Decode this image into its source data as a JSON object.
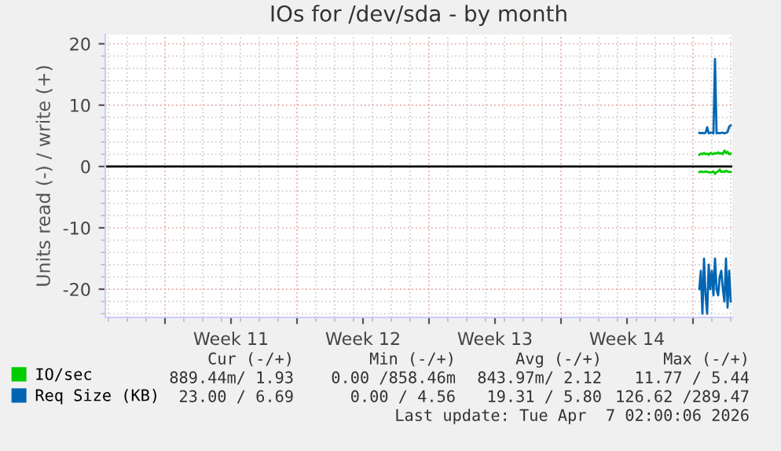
{
  "chart_data": {
    "type": "line",
    "title": "IOs for /dev/sda - by month",
    "ylabel": "Units read (-) / write (+)",
    "xlim": [
      "2026-03-05T20:00",
      "2026-04-08T02:00"
    ],
    "xticks": [
      {
        "value": "2026-03-09",
        "label": null
      },
      {
        "value": "2026-03-12T12:00",
        "label": "Week 11"
      },
      {
        "value": "2026-03-16",
        "label": null
      },
      {
        "value": "2026-03-19T12:00",
        "label": "Week 12"
      },
      {
        "value": "2026-03-23",
        "label": null
      },
      {
        "value": "2026-03-26T12:00",
        "label": "Week 13"
      },
      {
        "value": "2026-03-30",
        "label": null
      },
      {
        "value": "2026-04-02T12:00",
        "label": "Week 14"
      },
      {
        "value": "2026-04-06",
        "label": null
      }
    ],
    "ylim": [
      -24.6,
      21.5
    ],
    "yticks": [
      -20,
      -10,
      0,
      10,
      20
    ],
    "grid": true,
    "legend": "bottom",
    "x": [
      "2026-04-06T08:00",
      "2026-04-06T10:00",
      "2026-04-06T12:00",
      "2026-04-06T14:00",
      "2026-04-06T16:00",
      "2026-04-06T18:00",
      "2026-04-06T20:00",
      "2026-04-06T22:00",
      "2026-04-07T00:00",
      "2026-04-07T02:00",
      "2026-04-07T04:00",
      "2026-04-07T06:00",
      "2026-04-07T08:00",
      "2026-04-07T10:00",
      "2026-04-07T12:00",
      "2026-04-07T14:00",
      "2026-04-07T16:00",
      "2026-04-07T18:00",
      "2026-04-07T20:00",
      "2026-04-07T22:00",
      "2026-04-08T00:00"
    ],
    "series": [
      {
        "name": "IO/sec",
        "color": "#00cc00",
        "values": [
          1.9,
          2.1,
          2.0,
          2.2,
          2.0,
          2.1,
          1.9,
          2.2,
          2.1,
          2.0,
          2.2,
          2.1,
          2.3,
          2.1,
          2.2,
          2.0,
          2.6,
          2.2,
          2.4,
          2.0,
          2.1
        ]
      },
      {
        "color": "#00cc00",
        "values": [
          -0.9,
          -0.8,
          -0.9,
          -0.9,
          -0.8,
          -0.9,
          -0.9,
          -1.0,
          -0.9,
          -0.8,
          -1.2,
          -0.9,
          -0.8,
          -0.5,
          -0.9,
          -0.8,
          -0.9,
          -0.7,
          -0.8,
          -0.9,
          -0.9
        ]
      },
      {
        "name": "Req Size (KB)",
        "color": "#0066b3",
        "values": [
          5.5,
          5.4,
          5.5,
          5.4,
          5.5,
          6.4,
          5.4,
          5.5,
          5.5,
          5.4,
          17.5,
          5.4,
          5.5,
          5.4,
          5.5,
          5.5,
          5.4,
          5.5,
          5.6,
          6.5,
          6.7
        ]
      },
      {
        "color": "#0066b3",
        "values": [
          -20,
          -17,
          -24,
          -15,
          -21,
          -24,
          -16,
          -20,
          -17,
          -21,
          -15,
          -20,
          -21,
          -18,
          -17,
          -20,
          -22,
          -15,
          -23,
          -17,
          -22
        ]
      }
    ],
    "ref_lines": [
      {
        "axis": "y",
        "value": 0,
        "color": "#000000"
      }
    ],
    "annotations": [
      "Cur (-/+)",
      "Min (-/+)",
      "Avg (-/+)",
      "Max (-/+)",
      "889.44m/ 1.93",
      "0.00 /858.46m",
      "843.97m/ 2.12",
      "11.77 / 5.44",
      "23.00 / 6.69",
      "0.00 / 4.56",
      "19.31 / 5.80",
      "126.62 /289.47",
      "Last update: Tue Apr  7 02:00:06 2026"
    ]
  }
}
